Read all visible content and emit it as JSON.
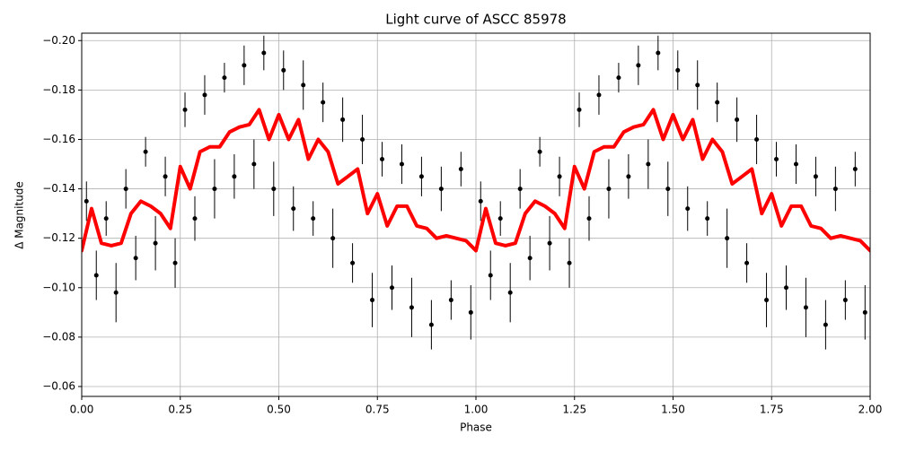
{
  "chart_data": {
    "type": "scatter",
    "title": "Light curve of ASCC 85978",
    "xlabel": "Phase",
    "ylabel": "Δ Magnitude",
    "xlim": [
      0,
      2
    ],
    "ylim": [
      -0.056,
      -0.203
    ],
    "xticks": [
      {
        "value": 0,
        "label": "0.00"
      },
      {
        "value": 0.25,
        "label": "0.25"
      },
      {
        "value": 0.5,
        "label": "0.50"
      },
      {
        "value": 0.75,
        "label": "0.75"
      },
      {
        "value": 1,
        "label": "1.00"
      },
      {
        "value": 1.25,
        "label": "1.25"
      },
      {
        "value": 1.5,
        "label": "1.50"
      },
      {
        "value": 1.75,
        "label": "1.75"
      },
      {
        "value": 2,
        "label": "2.00"
      }
    ],
    "yticks": [
      {
        "value": -0.06,
        "label": "−0.06"
      },
      {
        "value": -0.08,
        "label": "−0.08"
      },
      {
        "value": -0.1,
        "label": "−0.10"
      },
      {
        "value": -0.12,
        "label": "−0.12"
      },
      {
        "value": -0.14,
        "label": "−0.14"
      },
      {
        "value": -0.16,
        "label": "−0.16"
      },
      {
        "value": -0.18,
        "label": "−0.18"
      },
      {
        "value": -0.2,
        "label": "−0.20"
      }
    ],
    "grid": true,
    "points": {
      "color": "#000000",
      "x": [
        0.012,
        0.037,
        0.062,
        0.087,
        0.112,
        0.137,
        0.162,
        0.187,
        0.212,
        0.237,
        0.262,
        0.287,
        0.312,
        0.337,
        0.362,
        0.387,
        0.412,
        0.437,
        0.462,
        0.487,
        0.512,
        0.537,
        0.562,
        0.587,
        0.612,
        0.637,
        0.662,
        0.687,
        0.712,
        0.737,
        0.762,
        0.787,
        0.812,
        0.837,
        0.862,
        0.887,
        0.912,
        0.937,
        0.962,
        0.987,
        1.012,
        1.037,
        1.062,
        1.087,
        1.112,
        1.137,
        1.162,
        1.187,
        1.212,
        1.237,
        1.262,
        1.287,
        1.312,
        1.337,
        1.362,
        1.387,
        1.412,
        1.437,
        1.462,
        1.487,
        1.512,
        1.537,
        1.562,
        1.587,
        1.612,
        1.637,
        1.662,
        1.687,
        1.712,
        1.737,
        1.762,
        1.787,
        1.812,
        1.837,
        1.862,
        1.887,
        1.912,
        1.937,
        1.962,
        1.987
      ],
      "values": [
        -0.135,
        -0.105,
        -0.128,
        -0.098,
        -0.14,
        -0.112,
        -0.155,
        -0.118,
        -0.145,
        -0.11,
        -0.172,
        -0.128,
        -0.178,
        -0.14,
        -0.185,
        -0.145,
        -0.19,
        -0.15,
        -0.195,
        -0.14,
        -0.188,
        -0.132,
        -0.182,
        -0.128,
        -0.175,
        -0.12,
        -0.168,
        -0.11,
        -0.16,
        -0.095,
        -0.152,
        -0.1,
        -0.15,
        -0.092,
        -0.145,
        -0.085,
        -0.14,
        -0.095,
        -0.148,
        -0.09,
        -0.135,
        -0.105,
        -0.128,
        -0.098,
        -0.14,
        -0.112,
        -0.155,
        -0.118,
        -0.145,
        -0.11,
        -0.172,
        -0.128,
        -0.178,
        -0.14,
        -0.185,
        -0.145,
        -0.19,
        -0.15,
        -0.195,
        -0.14,
        -0.188,
        -0.132,
        -0.182,
        -0.128,
        -0.175,
        -0.12,
        -0.168,
        -0.11,
        -0.16,
        -0.095,
        -0.152,
        -0.1,
        -0.15,
        -0.092,
        -0.145,
        -0.085,
        -0.14,
        -0.095,
        -0.148,
        -0.09
      ],
      "errors": [
        0.008,
        0.01,
        0.007,
        0.012,
        0.008,
        0.009,
        0.006,
        0.011,
        0.008,
        0.01,
        0.007,
        0.009,
        0.008,
        0.012,
        0.006,
        0.009,
        0.008,
        0.01,
        0.007,
        0.011,
        0.008,
        0.009,
        0.01,
        0.007,
        0.008,
        0.012,
        0.009,
        0.008,
        0.01,
        0.011,
        0.007,
        0.009,
        0.008,
        0.012,
        0.008,
        0.01,
        0.009,
        0.008,
        0.007,
        0.011,
        0.008,
        0.01,
        0.007,
        0.012,
        0.008,
        0.009,
        0.006,
        0.011,
        0.008,
        0.01,
        0.007,
        0.009,
        0.008,
        0.012,
        0.006,
        0.009,
        0.008,
        0.01,
        0.007,
        0.011,
        0.008,
        0.009,
        0.01,
        0.007,
        0.008,
        0.012,
        0.009,
        0.008,
        0.01,
        0.011,
        0.007,
        0.009,
        0.008,
        0.012,
        0.008,
        0.01,
        0.009,
        0.008,
        0.007,
        0.011
      ]
    },
    "curve": {
      "color": "#ff0000",
      "x": [
        0,
        0.025,
        0.05,
        0.075,
        0.1,
        0.125,
        0.15,
        0.175,
        0.2,
        0.225,
        0.25,
        0.275,
        0.3,
        0.325,
        0.35,
        0.375,
        0.4,
        0.425,
        0.45,
        0.475,
        0.5,
        0.525,
        0.55,
        0.575,
        0.6,
        0.625,
        0.65,
        0.675,
        0.7,
        0.725,
        0.75,
        0.775,
        0.8,
        0.825,
        0.85,
        0.875,
        0.9,
        0.925,
        0.95,
        0.975,
        1,
        1.025,
        1.05,
        1.075,
        1.1,
        1.125,
        1.15,
        1.175,
        1.2,
        1.225,
        1.25,
        1.275,
        1.3,
        1.325,
        1.35,
        1.375,
        1.4,
        1.425,
        1.45,
        1.475,
        1.5,
        1.525,
        1.55,
        1.575,
        1.6,
        1.625,
        1.65,
        1.675,
        1.7,
        1.725,
        1.75,
        1.775,
        1.8,
        1.825,
        1.85,
        1.875,
        1.9,
        1.925,
        1.95,
        1.975,
        2
      ],
      "values": [
        -0.115,
        -0.132,
        -0.118,
        -0.117,
        -0.118,
        -0.13,
        -0.135,
        -0.133,
        -0.13,
        -0.124,
        -0.149,
        -0.14,
        -0.155,
        -0.157,
        -0.157,
        -0.163,
        -0.165,
        -0.166,
        -0.172,
        -0.16,
        -0.17,
        -0.16,
        -0.168,
        -0.152,
        -0.16,
        -0.155,
        -0.142,
        -0.145,
        -0.148,
        -0.13,
        -0.138,
        -0.125,
        -0.133,
        -0.133,
        -0.125,
        -0.124,
        -0.12,
        -0.121,
        -0.12,
        -0.119,
        -0.115,
        -0.132,
        -0.118,
        -0.117,
        -0.118,
        -0.13,
        -0.135,
        -0.133,
        -0.13,
        -0.124,
        -0.149,
        -0.14,
        -0.155,
        -0.157,
        -0.157,
        -0.163,
        -0.165,
        -0.166,
        -0.172,
        -0.16,
        -0.17,
        -0.16,
        -0.168,
        -0.152,
        -0.16,
        -0.155,
        -0.142,
        -0.145,
        -0.148,
        -0.13,
        -0.138,
        -0.125,
        -0.133,
        -0.133,
        -0.125,
        -0.124,
        -0.12,
        -0.121,
        -0.12,
        -0.119,
        -0.115
      ]
    }
  }
}
